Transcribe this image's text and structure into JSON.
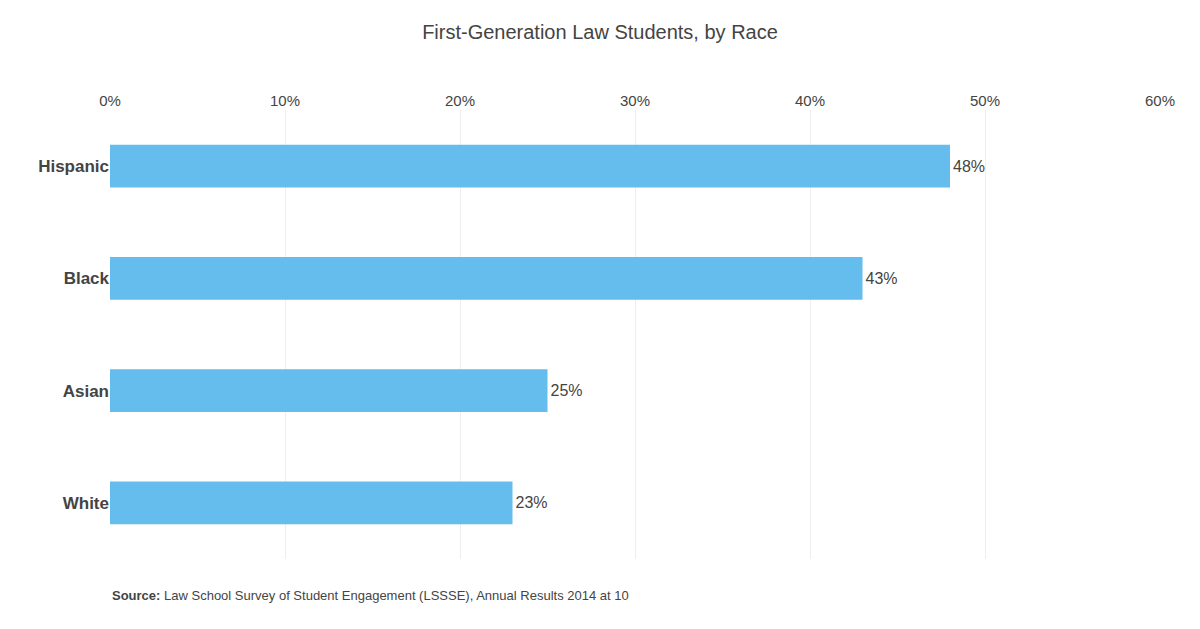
{
  "chart_data": {
    "type": "bar",
    "orientation": "horizontal",
    "title": "First-Generation Law Students, by Race",
    "categories": [
      "White",
      "Asian",
      "Black",
      "Hispanic"
    ],
    "values": [
      23,
      25,
      43,
      48
    ],
    "value_labels": [
      "23%",
      "25%",
      "43%",
      "48%"
    ],
    "data_labels": true,
    "color": "#64BDED",
    "xlim": [
      0,
      60
    ],
    "xticks": [
      {
        "value": 0,
        "label": "0%"
      },
      {
        "value": 10,
        "label": "10%"
      },
      {
        "value": 20,
        "label": "20%"
      },
      {
        "value": 30,
        "label": "30%"
      },
      {
        "value": 40,
        "label": "40%"
      },
      {
        "value": 50,
        "label": "50%"
      },
      {
        "value": 60,
        "label": "60%"
      }
    ],
    "grid": true,
    "annotations": [
      "Source: Law School Survey of Student Engagement (LSSSE), Annual Results 2014 at 10"
    ]
  }
}
